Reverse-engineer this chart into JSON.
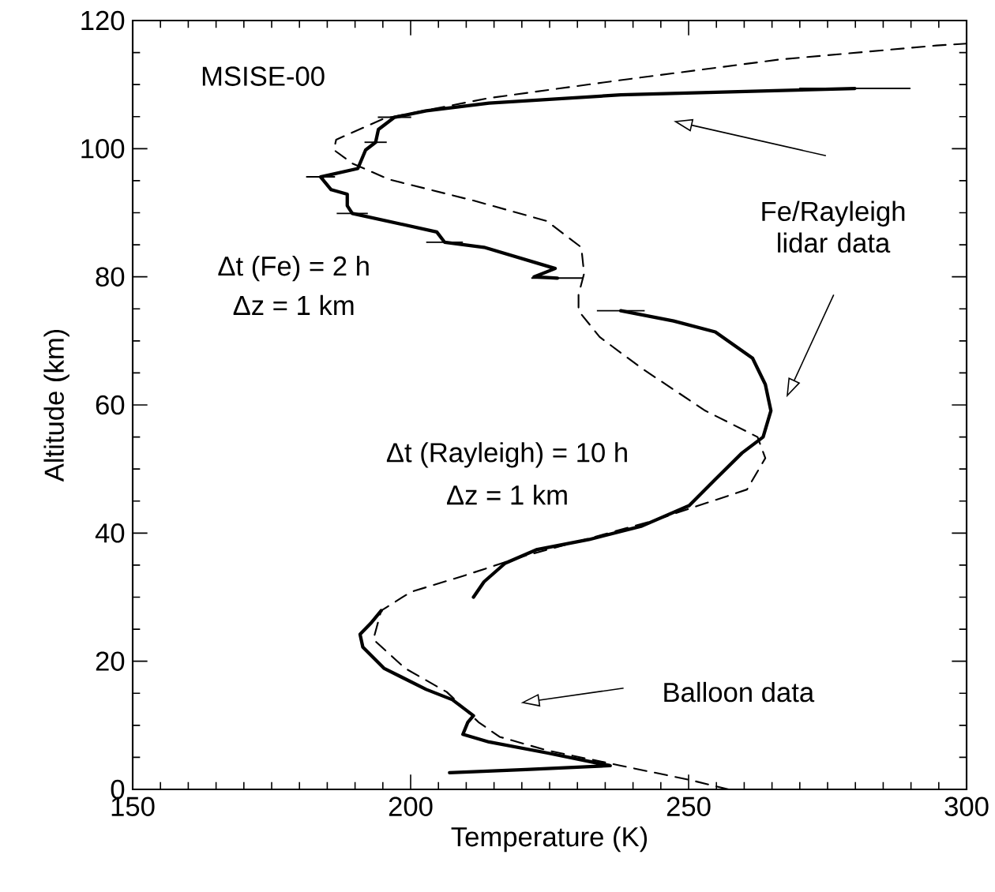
{
  "chart_data": {
    "type": "line",
    "xlabel": "Temperature (K)",
    "ylabel": "Altitude (km)",
    "xlim": [
      150,
      300
    ],
    "ylim": [
      0,
      120
    ],
    "xticks": [
      150,
      200,
      250,
      300
    ],
    "yticks": [
      0,
      20,
      40,
      60,
      80,
      100,
      120
    ],
    "grid": false,
    "marker": "none",
    "series": [
      {
        "color": "#000000",
        "line_style": "dashed",
        "x": [
          257.2,
          250.1,
          237.8,
          224.5,
          216,
          212.2,
          206.5,
          199,
          193.3,
          194.7,
          200,
          209.4,
          220.7,
          233.1,
          243.5,
          260.5,
          263.8,
          262.4,
          253,
          241.6,
          234,
          230.2,
          230.2,
          231.2,
          230.7,
          224.5,
          211.3,
          196.1,
          189.5,
          186.2,
          186.6,
          195.2,
          214.1,
          237.8,
          266.2,
          294.6,
          300
        ],
        "values": [
          0,
          1.5,
          3.7,
          6.1,
          8.2,
          10.5,
          15.2,
          18.9,
          23.4,
          27.9,
          30.8,
          33.3,
          36.5,
          39.4,
          41.9,
          46.8,
          51.7,
          55,
          59.1,
          65.7,
          70.6,
          74.7,
          77.2,
          80.5,
          84.6,
          88.7,
          91.9,
          95.2,
          97.7,
          99.8,
          101.4,
          104.7,
          107.9,
          110.7,
          113.9,
          116.1,
          116.4
        ]
      },
      {
        "color": "#000000",
        "line_style": "solid",
        "x": [
          279.9,
          237.8,
          214.1,
          202.8,
          197.1,
          194.2,
          193.7,
          191.9,
          190.5,
          183.8,
          185.7,
          188.6,
          188.6,
          189.5,
          204.7,
          206.1,
          213.2,
          226,
          222.2,
          226.4,
          null,
          237.8,
          247.3,
          254.8,
          261.5,
          263.8,
          264.8,
          263.4,
          259.6,
          254.8,
          250.1,
          241.6,
          232.1,
          222.6,
          217,
          213.2,
          211.3
        ],
        "values": [
          109.4,
          108.4,
          107.1,
          105.9,
          104.9,
          103,
          101,
          99.8,
          96.9,
          95.6,
          93.6,
          92.9,
          91.1,
          89.9,
          87,
          85.4,
          84.6,
          81.3,
          80,
          79.8,
          null,
          74.7,
          73.1,
          71.4,
          67.3,
          63.2,
          59.1,
          55,
          52.5,
          48.4,
          44.3,
          41.1,
          39,
          37.4,
          35.3,
          32.4,
          30
        ],
        "xerrors": [
          10,
          null,
          null,
          null,
          3,
          null,
          2,
          null,
          null,
          2.6,
          null,
          null,
          null,
          2.8,
          null,
          3.3,
          null,
          null,
          null,
          4.7,
          null,
          4.3,
          null,
          null,
          null,
          null,
          null,
          null,
          null,
          null,
          null,
          null,
          null,
          null,
          null,
          null,
          null
        ]
      },
      {
        "color": "#000000",
        "line_style": "solid",
        "x": [
          194.7,
          192.8,
          190.9,
          191.4,
          195.2,
          202.8,
          207.5,
          211.3,
          210.3,
          209.4,
          214.1,
          224.5,
          235.9,
          220.7,
          207
        ],
        "values": [
          27.9,
          25.9,
          24.2,
          22.2,
          18.9,
          15.6,
          14,
          11.5,
          10.5,
          8.6,
          7.4,
          5.7,
          3.7,
          3.1,
          2.6
        ]
      }
    ],
    "annotations": [
      "MSISE-00",
      "Fe/Rayleigh lidar data",
      "Balloon data",
      "Δt (Fe) = 2 h",
      "Δz = 1 km",
      "Δt (Rayleigh) = 10 h",
      "Δz = 1 km"
    ]
  }
}
